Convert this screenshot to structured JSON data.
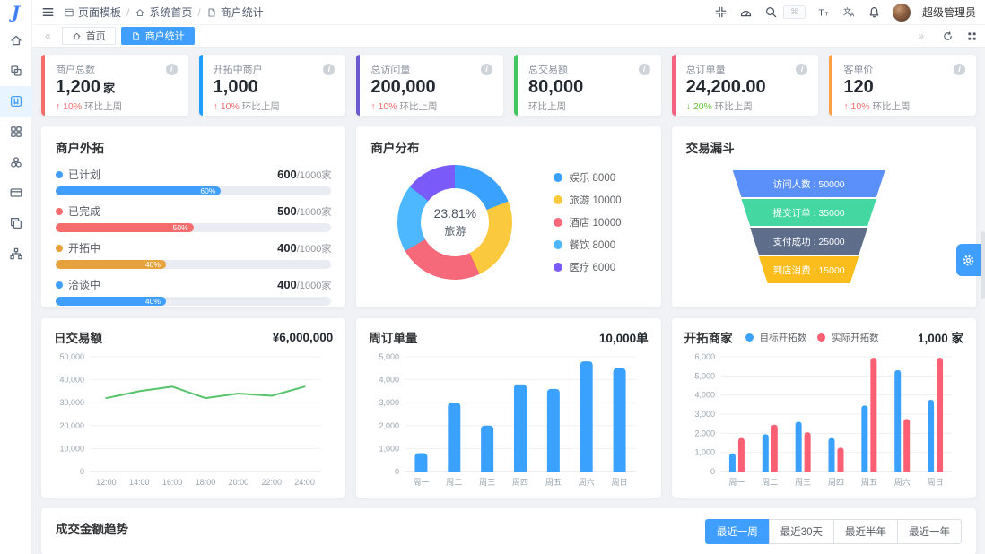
{
  "app": {
    "primary_color": "#409eff",
    "logo_letter": "J"
  },
  "topbar": {
    "breadcrumb": [
      {
        "icon": "window-icon",
        "label": "页面模板"
      },
      {
        "icon": "home-icon",
        "label": "系统首页"
      },
      {
        "icon": "file-icon",
        "label": "商户统计"
      }
    ],
    "actions": [
      "fullscreen-icon",
      "ruler-icon",
      "search-icon"
    ],
    "search_hint": "⌘",
    "actions2": [
      "font-size-icon",
      "translate-icon",
      "bell-icon"
    ],
    "username": "超级管理员"
  },
  "tabbar": {
    "scroll_left": "«",
    "tabs": [
      {
        "icon": "home-icon",
        "label": "首页",
        "active": false
      },
      {
        "icon": "file-icon",
        "label": "商户统计",
        "active": true
      }
    ],
    "scroll_right": "»",
    "controls": [
      "refresh-icon",
      "layout-grid-icon"
    ]
  },
  "sidebar": {
    "items": [
      {
        "icon": "home-icon",
        "active": false
      },
      {
        "icon": "components-icon",
        "active": false
      },
      {
        "icon": "template-icon",
        "active": true
      },
      {
        "icon": "apps-icon",
        "active": false
      },
      {
        "icon": "organization-icon",
        "active": false
      },
      {
        "icon": "card-icon",
        "active": false
      },
      {
        "icon": "pages-icon",
        "active": false
      },
      {
        "icon": "sitemap-icon",
        "active": false
      }
    ]
  },
  "kpi_cards": [
    {
      "label": "商户总数",
      "value": "1,200",
      "unit": "家",
      "trend": "up",
      "trend_pct": "10%",
      "trend_suffix": "环比上周",
      "accent": "#f56c6c"
    },
    {
      "label": "开拓中商户",
      "value": "1,000",
      "unit": "",
      "trend": "up",
      "trend_pct": "10%",
      "trend_suffix": "环比上周",
      "accent": "#1e9fff"
    },
    {
      "label": "总访问量",
      "value": "200,000",
      "unit": "",
      "trend": "up",
      "trend_pct": "10%",
      "trend_suffix": "环比上周",
      "accent": "#6a5acd"
    },
    {
      "label": "总交易额",
      "value": "80,000",
      "unit": "",
      "trend": "none",
      "trend_pct": "",
      "trend_suffix": "环比上周",
      "accent": "#42c662"
    },
    {
      "label": "总订单量",
      "value": "24,200.00",
      "unit": "",
      "trend": "down",
      "trend_pct": "20%",
      "trend_suffix": "环比上周",
      "accent": "#f2637f"
    },
    {
      "label": "客单价",
      "value": "120",
      "unit": "",
      "trend": "up",
      "trend_pct": "10%",
      "trend_suffix": "环比上周",
      "accent": "#ff9f43"
    }
  ],
  "chart_data": [
    {
      "type": "bar",
      "id": "merchant-outreach",
      "title": "商户外拓",
      "categories": [
        "已计划",
        "已完成",
        "开拓中",
        "洽谈中"
      ],
      "values": [
        600,
        500,
        400,
        400
      ],
      "max": 1000,
      "value_suffix": "/1000家",
      "percent_labels": [
        "60%",
        "50%",
        "40%",
        "40%"
      ],
      "colors": [
        "#409eff",
        "#f56c6c",
        "#e6a23c",
        "#409eff"
      ]
    },
    {
      "type": "pie",
      "id": "merchant-distribution",
      "title": "商户分布",
      "labels": [
        "娱乐",
        "旅游",
        "酒店",
        "餐饮",
        "医疗"
      ],
      "values": [
        8000,
        10000,
        10000,
        8000,
        6000
      ],
      "colors": [
        "#3aa1ff",
        "#fbc93d",
        "#f5697b",
        "#4db8ff",
        "#7a5af8"
      ],
      "center": {
        "value": "23.81%",
        "label": "旅游"
      },
      "legend_position": "right",
      "donut": true
    },
    {
      "type": "funnel",
      "id": "trade-funnel",
      "title": "交易漏斗",
      "stages": [
        {
          "label": "访问人数",
          "value": "50000",
          "color": "#5b8ff9"
        },
        {
          "label": "提交订单",
          "value": "35000",
          "color": "#44d7a2"
        },
        {
          "label": "支付成功",
          "value": "25000",
          "color": "#5d6d8a"
        },
        {
          "label": "到店消费",
          "value": "15000",
          "color": "#fbbd1b"
        }
      ]
    },
    {
      "type": "line",
      "id": "daily-trade",
      "title": "日交易额",
      "header_value": "¥6,000,000",
      "x": [
        "12:00",
        "14:00",
        "16:00",
        "18:00",
        "20:00",
        "22:00",
        "24:00"
      ],
      "values": [
        32000,
        35000,
        37000,
        32000,
        34000,
        33000,
        37000
      ],
      "ylim": [
        0,
        50000
      ],
      "ysteps": 5,
      "grid": true,
      "color": "#57c36a"
    },
    {
      "type": "bar",
      "id": "weekly-orders",
      "title": "周订单量",
      "header_value": "10,000单",
      "categories": [
        "周一",
        "周二",
        "周三",
        "周四",
        "周五",
        "周六",
        "周日"
      ],
      "values": [
        800,
        3000,
        2000,
        3800,
        3600,
        4800,
        4500
      ],
      "ylim": [
        0,
        5000
      ],
      "ysteps": 5,
      "grid": true,
      "color": "#3aa1ff"
    },
    {
      "type": "grouped_bar",
      "id": "expansion-merchants",
      "title": "开拓商家",
      "header_value": "1,000 家",
      "categories": [
        "周一",
        "周二",
        "周三",
        "周四",
        "周五",
        "周六",
        "周日"
      ],
      "series": [
        {
          "name": "目标开拓数",
          "color": "#3aa1ff",
          "values": [
            950,
            1950,
            2600,
            1750,
            3450,
            5300,
            3750
          ]
        },
        {
          "name": "实际开拓数",
          "color": "#fa5f73",
          "values": [
            1750,
            2450,
            2050,
            1250,
            5950,
            2750,
            5950
          ]
        }
      ],
      "ylim": [
        0,
        6000
      ],
      "ysteps": 6,
      "grid": true,
      "legend_position": "top"
    }
  ],
  "trend_section": {
    "title": "成交金额趋势",
    "buttons": [
      "最近一周",
      "最近30天",
      "最近半年",
      "最近一年"
    ],
    "active_index": 0
  }
}
